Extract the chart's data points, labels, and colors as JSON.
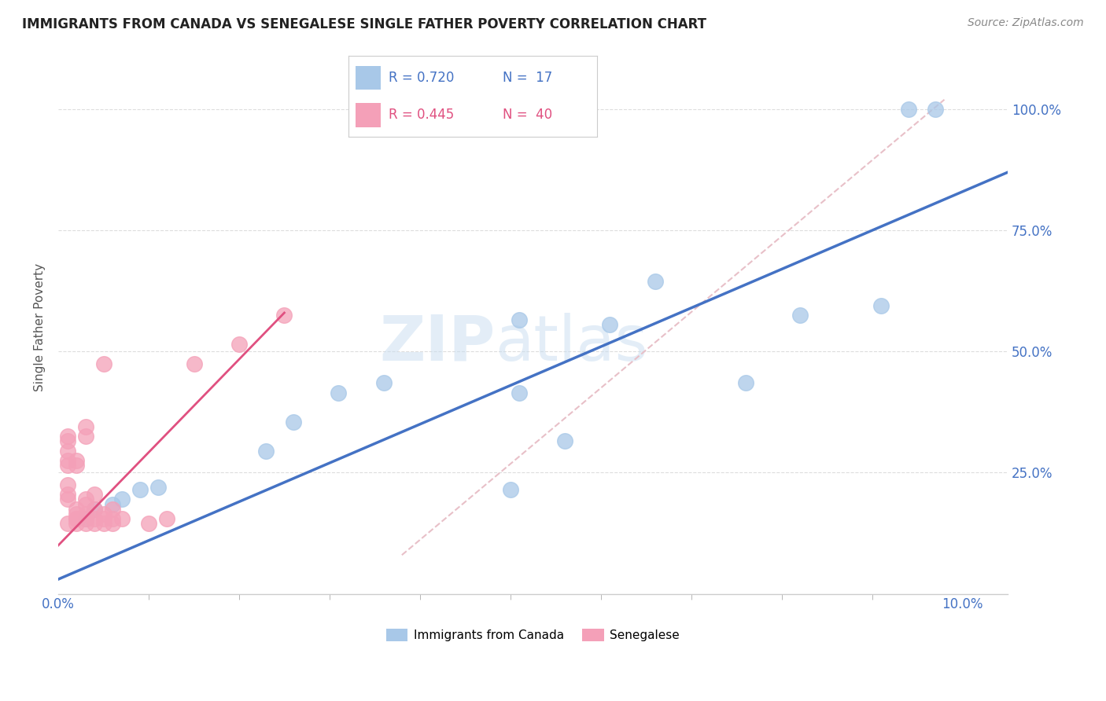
{
  "title": "IMMIGRANTS FROM CANADA VS SENEGALESE SINGLE FATHER POVERTY CORRELATION CHART",
  "source": "Source: ZipAtlas.com",
  "ylabel": "Single Father Poverty",
  "legend_blue_label": "Immigrants from Canada",
  "legend_pink_label": "Senegalese",
  "blue_color": "#a8c8e8",
  "pink_color": "#f4a0b8",
  "blue_line_color": "#4472c4",
  "pink_line_color": "#e05080",
  "diag_color": "#e8c0c8",
  "watermark_zip": "ZIP",
  "watermark_atlas": "atlas",
  "blue_points": [
    [
      0.003,
      0.155
    ],
    [
      0.004,
      0.175
    ],
    [
      0.006,
      0.185
    ],
    [
      0.007,
      0.195
    ],
    [
      0.009,
      0.215
    ],
    [
      0.011,
      0.22
    ],
    [
      0.023,
      0.295
    ],
    [
      0.026,
      0.355
    ],
    [
      0.031,
      0.415
    ],
    [
      0.036,
      0.435
    ],
    [
      0.051,
      0.565
    ],
    [
      0.051,
      0.415
    ],
    [
      0.056,
      0.315
    ],
    [
      0.061,
      0.555
    ],
    [
      0.066,
      0.645
    ],
    [
      0.076,
      0.435
    ],
    [
      0.082,
      0.575
    ],
    [
      0.091,
      0.595
    ],
    [
      0.094,
      1.0
    ],
    [
      0.097,
      1.0
    ],
    [
      0.05,
      0.215
    ]
  ],
  "pink_points": [
    [
      0.001,
      0.145
    ],
    [
      0.001,
      0.195
    ],
    [
      0.001,
      0.205
    ],
    [
      0.001,
      0.225
    ],
    [
      0.001,
      0.265
    ],
    [
      0.001,
      0.275
    ],
    [
      0.001,
      0.295
    ],
    [
      0.001,
      0.315
    ],
    [
      0.001,
      0.325
    ],
    [
      0.002,
      0.145
    ],
    [
      0.002,
      0.155
    ],
    [
      0.002,
      0.155
    ],
    [
      0.002,
      0.165
    ],
    [
      0.002,
      0.175
    ],
    [
      0.002,
      0.265
    ],
    [
      0.002,
      0.275
    ],
    [
      0.003,
      0.145
    ],
    [
      0.003,
      0.155
    ],
    [
      0.003,
      0.165
    ],
    [
      0.003,
      0.185
    ],
    [
      0.003,
      0.195
    ],
    [
      0.003,
      0.325
    ],
    [
      0.003,
      0.345
    ],
    [
      0.004,
      0.145
    ],
    [
      0.004,
      0.155
    ],
    [
      0.004,
      0.175
    ],
    [
      0.004,
      0.205
    ],
    [
      0.005,
      0.145
    ],
    [
      0.005,
      0.155
    ],
    [
      0.005,
      0.165
    ],
    [
      0.005,
      0.475
    ],
    [
      0.006,
      0.145
    ],
    [
      0.006,
      0.155
    ],
    [
      0.006,
      0.175
    ],
    [
      0.007,
      0.155
    ],
    [
      0.01,
      0.145
    ],
    [
      0.012,
      0.155
    ],
    [
      0.015,
      0.475
    ],
    [
      0.02,
      0.515
    ],
    [
      0.025,
      0.575
    ]
  ],
  "xlim": [
    0.0,
    0.105
  ],
  "ylim": [
    0.0,
    1.1
  ],
  "x_minor_ticks": [
    0.01,
    0.02,
    0.03,
    0.04,
    0.05,
    0.06,
    0.07,
    0.08,
    0.09
  ],
  "yticks": [
    0.25,
    0.5,
    0.75,
    1.0
  ],
  "blue_line_x": [
    0.0,
    0.105
  ],
  "blue_line_y": [
    0.03,
    0.87
  ],
  "pink_line_x": [
    0.0,
    0.025
  ],
  "pink_line_y": [
    0.1,
    0.58
  ],
  "diag_line_x": [
    0.038,
    0.098
  ],
  "diag_line_y": [
    0.08,
    1.02
  ]
}
